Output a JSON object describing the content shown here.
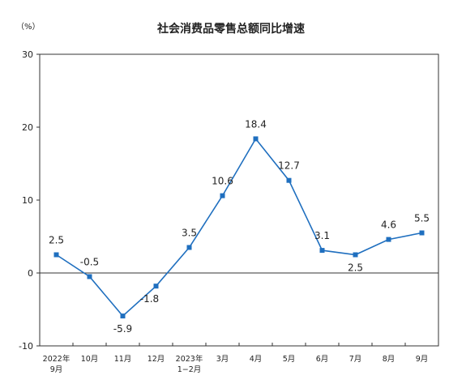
{
  "chart_data": {
    "type": "line",
    "title": "社会消费品零售总额同比增速",
    "unit_label": "（%）",
    "categories": [
      [
        "2022年",
        "9月"
      ],
      [
        "10月"
      ],
      [
        "11月"
      ],
      [
        "12月"
      ],
      [
        "2023年",
        "1−2月"
      ],
      [
        "3月"
      ],
      [
        "4月"
      ],
      [
        "5月"
      ],
      [
        "6月"
      ],
      [
        "7月"
      ],
      [
        "8月"
      ],
      [
        "9月"
      ]
    ],
    "series": [
      {
        "values": [
          2.5,
          -0.5,
          -5.9,
          -1.8,
          3.5,
          10.6,
          18.4,
          12.7,
          3.1,
          2.5,
          4.6,
          5.5
        ],
        "labels": [
          "2.5",
          "-0.5",
          "-5.9",
          "-1.8",
          "3.5",
          "10.6",
          "18.4",
          "12.7",
          "3.1",
          "2.5",
          "4.6",
          "5.5"
        ],
        "color": "#1f6fbf"
      }
    ],
    "ylim": [
      -10,
      30
    ],
    "yticks": [
      -10,
      0,
      10,
      20,
      30
    ],
    "grid": false,
    "legend": "none"
  }
}
